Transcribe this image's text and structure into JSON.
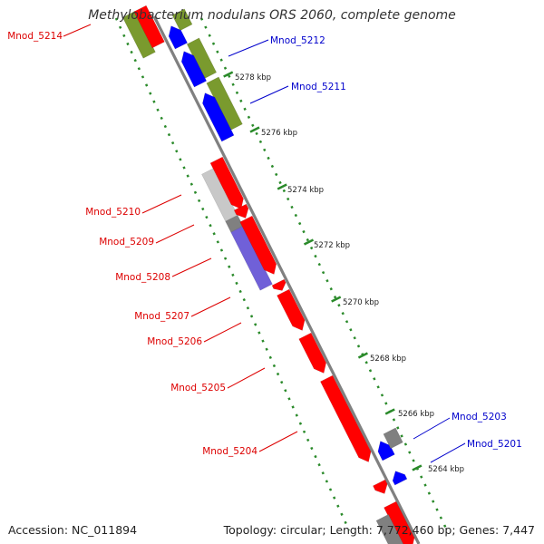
{
  "title": "Methylobacterium nodulans ORS 2060, complete genome",
  "accession": "Accession: NC_011894",
  "topology": "Topology: circular; Length: 7,772,460 bp; Genes: 7,447",
  "colors": {
    "forward_gene": "#ff0000",
    "reverse_gene": "#0000ff",
    "label_forward": "#dd0000",
    "label_reverse": "#0000cc",
    "olive_track": "#7a9a2e",
    "grey_gene": "#808080",
    "light_grey_gene": "#c8c8c8",
    "purple_gene": "#7060d8",
    "backbone": "#808080",
    "tick_green": "#2a8a2a"
  },
  "scale_labels": [
    "5278 kbp",
    "5276 kbp",
    "5274 kbp",
    "5272 kbp",
    "5270 kbp",
    "5268 kbp",
    "5266 kbp",
    "5264 kbp"
  ],
  "gene_labels": [
    {
      "id": "Mnod_5214",
      "strand": "forward"
    },
    {
      "id": "Mnod_5212",
      "strand": "reverse"
    },
    {
      "id": "Mnod_5211",
      "strand": "reverse"
    },
    {
      "id": "Mnod_5210",
      "strand": "forward"
    },
    {
      "id": "Mnod_5209",
      "strand": "forward"
    },
    {
      "id": "Mnod_5208",
      "strand": "forward"
    },
    {
      "id": "Mnod_5207",
      "strand": "forward"
    },
    {
      "id": "Mnod_5206",
      "strand": "forward"
    },
    {
      "id": "Mnod_5205",
      "strand": "forward"
    },
    {
      "id": "Mnod_5204",
      "strand": "forward"
    },
    {
      "id": "Mnod_5203",
      "strand": "reverse"
    },
    {
      "id": "Mnod_5201",
      "strand": "reverse"
    }
  ]
}
